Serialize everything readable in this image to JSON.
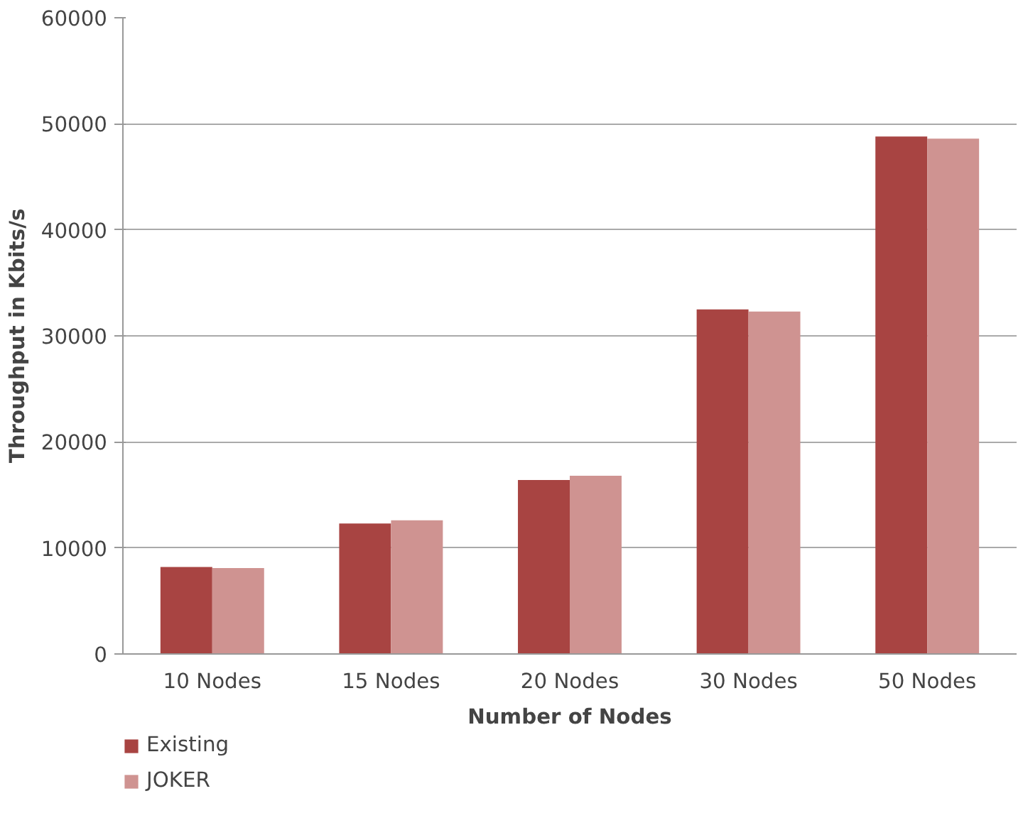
{
  "chart_data": {
    "type": "bar",
    "xlabel": "Number of Nodes",
    "ylabel": "Throughput in Kbits/s",
    "categories": [
      "10 Nodes",
      "15 Nodes",
      "20 Nodes",
      "30 Nodes",
      "50 Nodes"
    ],
    "series": [
      {
        "name": "Existing",
        "color": "#a84442",
        "values": [
          8200,
          12300,
          16400,
          32500,
          48800
        ]
      },
      {
        "name": "JOKER",
        "color": "#cf9391",
        "values": [
          8100,
          12600,
          16800,
          32300,
          48600
        ]
      }
    ],
    "ylim": [
      0,
      60000
    ],
    "yticks": [
      0,
      10000,
      20000,
      30000,
      40000,
      50000,
      60000
    ],
    "grid": "y",
    "legend": "bottom left"
  }
}
